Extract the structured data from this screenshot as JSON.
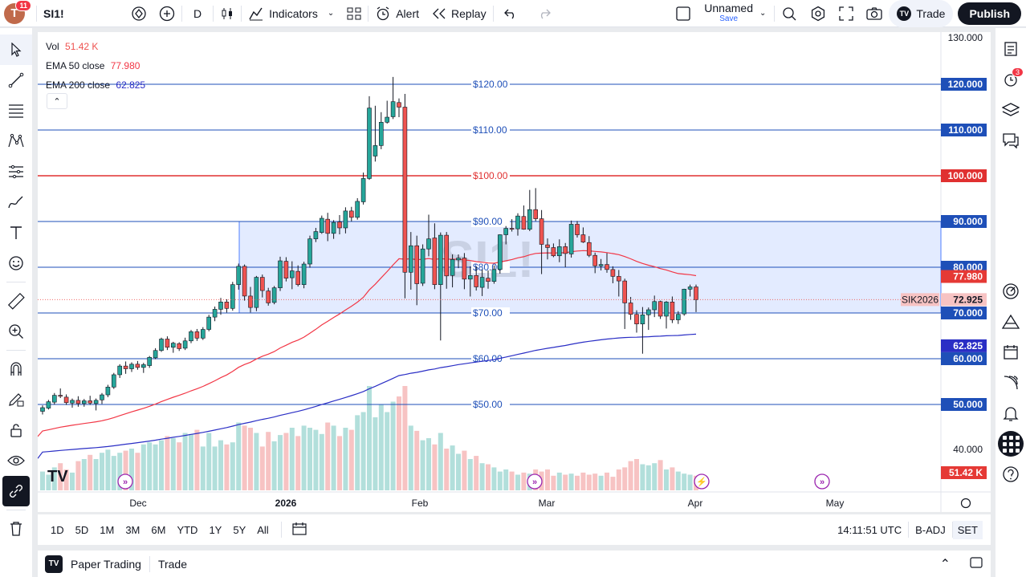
{
  "topbar": {
    "avatar_letter": "T",
    "avatar_badge": "11",
    "symbol": "SI1!",
    "interval": "D",
    "indicators": "Indicators",
    "alert": "Alert",
    "replay": "Replay",
    "layout_name": "Unnamed",
    "layout_sub": "Save",
    "trade": "Trade",
    "publish": "Publish"
  },
  "legend": {
    "vol_label": "Vol",
    "vol_value": "51.42 K",
    "ema50_label": "EMA 50 close",
    "ema50_value": "77.980",
    "ema200_label": "EMA 200 close",
    "ema200_value": "62.825"
  },
  "watermark": "SI1!",
  "colors": {
    "up": "#26a69a",
    "down": "#ef5350",
    "ema50": "#f23645",
    "ema200": "#2a2ec5",
    "hline_blue": "#1e4fb8",
    "hline_red": "#e03030",
    "zone": "#e3ebff"
  },
  "right_badges": {
    "dn": "SIK2026",
    "sik": "72.925",
    "ema50": "77.980",
    "ema200": "62.825",
    "vol": "51.42 K"
  },
  "bottom": {
    "ranges": [
      "1D",
      "5D",
      "1M",
      "3M",
      "6M",
      "YTD",
      "1Y",
      "5Y",
      "All"
    ],
    "time": "14:11:51 UTC",
    "adj": "B-ADJ",
    "session": "SET"
  },
  "paper": {
    "label": "Paper Trading",
    "trade": "Trade"
  },
  "notification_count": "3",
  "chart_data": {
    "type": "candlestick",
    "symbol": "SI1!",
    "price_axis_ticks": [
      "130.000",
      "40.000"
    ],
    "time_axis_labels": [
      "Dec",
      "2026",
      "Feb",
      "Mar",
      "Apr",
      "May"
    ],
    "horizontal_levels": [
      {
        "price": 120,
        "label": "$120.00",
        "axis": "120.000",
        "color": "blue"
      },
      {
        "price": 110,
        "label": "$110.00",
        "axis": "110.000",
        "color": "blue"
      },
      {
        "price": 100,
        "label": "$100.00",
        "axis": "100.000",
        "color": "red"
      },
      {
        "price": 90,
        "label": "$90.00",
        "axis": "90.000",
        "color": "blue"
      },
      {
        "price": 80,
        "label": "$80.00",
        "axis": "80.000",
        "color": "blue"
      },
      {
        "price": 70,
        "label": "$70.00",
        "axis": "70.000",
        "color": "blue"
      },
      {
        "price": 60,
        "label": "$60.00",
        "axis": "60.000",
        "color": "blue"
      },
      {
        "price": 50,
        "label": "$50.00",
        "axis": "50.000",
        "color": "blue"
      }
    ],
    "zone": {
      "from_price": 70,
      "to_price": 90
    },
    "last_price": 72.925,
    "candles": [
      [
        48.5,
        49.8,
        47.8,
        49.3
      ],
      [
        49.2,
        51.0,
        48.9,
        50.6
      ],
      [
        50.5,
        52.5,
        50.0,
        52.0
      ],
      [
        52.0,
        53.5,
        51.4,
        51.8
      ],
      [
        51.6,
        52.2,
        49.9,
        50.4
      ],
      [
        50.3,
        51.3,
        49.3,
        50.9
      ],
      [
        50.9,
        51.8,
        49.5,
        50.2
      ],
      [
        50.2,
        51.2,
        49.5,
        50.8
      ],
      [
        50.8,
        51.9,
        49.9,
        50.3
      ],
      [
        50.2,
        51.3,
        48.7,
        50.9
      ],
      [
        51.0,
        52.5,
        50.1,
        52.1
      ],
      [
        52.1,
        54.3,
        51.6,
        53.8
      ],
      [
        53.8,
        56.9,
        53.4,
        56.5
      ],
      [
        56.5,
        58.8,
        55.8,
        58.4
      ],
      [
        58.4,
        59.4,
        56.7,
        57.8
      ],
      [
        57.8,
        59.2,
        57.1,
        58.8
      ],
      [
        58.8,
        59.5,
        57.6,
        58.1
      ],
      [
        58.1,
        59.1,
        56.9,
        58.7
      ],
      [
        58.5,
        60.6,
        58.0,
        60.3
      ],
      [
        60.2,
        62.3,
        59.9,
        61.8
      ],
      [
        61.8,
        64.6,
        61.5,
        64.3
      ],
      [
        64.3,
        64.9,
        61.9,
        62.5
      ],
      [
        62.5,
        63.7,
        61.3,
        63.4
      ],
      [
        63.3,
        63.6,
        61.7,
        62.2
      ],
      [
        62.3,
        64.6,
        61.9,
        63.9
      ],
      [
        63.9,
        66.3,
        63.4,
        65.9
      ],
      [
        65.9,
        66.5,
        63.9,
        64.5
      ],
      [
        64.5,
        66.9,
        64.1,
        66.4
      ],
      [
        66.4,
        69.6,
        66.0,
        69.1
      ],
      [
        69.1,
        71.4,
        68.2,
        70.8
      ],
      [
        70.8,
        73.3,
        69.6,
        72.4
      ],
      [
        72.4,
        73.0,
        70.1,
        71.0
      ],
      [
        71.0,
        76.8,
        70.5,
        76.2
      ],
      [
        76.2,
        80.8,
        75.1,
        80.2
      ],
      [
        80.2,
        80.6,
        72.7,
        73.7
      ],
      [
        73.7,
        75.7,
        70.1,
        71.2
      ],
      [
        71.2,
        78.1,
        70.4,
        77.8
      ],
      [
        77.8,
        78.4,
        73.4,
        74.9
      ],
      [
        74.8,
        75.5,
        71.6,
        72.2
      ],
      [
        72.3,
        75.9,
        71.9,
        75.5
      ],
      [
        75.5,
        82.3,
        74.8,
        81.4
      ],
      [
        81.3,
        82.2,
        76.9,
        77.6
      ],
      [
        77.7,
        81.3,
        75.2,
        79.2
      ],
      [
        79.1,
        80.4,
        75.8,
        76.2
      ],
      [
        76.2,
        81.2,
        75.4,
        80.7
      ],
      [
        80.7,
        86.9,
        79.9,
        86.2
      ],
      [
        86.2,
        88.6,
        85.5,
        87.8
      ],
      [
        87.6,
        91.3,
        87.3,
        90.7
      ],
      [
        90.5,
        91.9,
        85.7,
        87.4
      ],
      [
        87.4,
        90.3,
        86.2,
        89.8
      ],
      [
        89.9,
        91.4,
        87.2,
        88.6
      ],
      [
        88.6,
        93.1,
        87.4,
        92.3
      ],
      [
        92.3,
        93.2,
        90.0,
        90.9
      ],
      [
        90.9,
        95.1,
        90.4,
        94.4
      ],
      [
        94.3,
        100.7,
        93.7,
        99.4
      ],
      [
        99.4,
        117.4,
        99.1,
        114.8
      ],
      [
        104.3,
        115.3,
        103.1,
        106.6
      ],
      [
        106.6,
        113.9,
        105.8,
        111.7
      ],
      [
        111.7,
        116.4,
        111.4,
        112.8
      ],
      [
        112.9,
        121.6,
        112.4,
        116.2
      ],
      [
        116.0,
        116.9,
        112.8,
        115.0
      ],
      [
        115.0,
        117.9,
        73.2,
        78.9
      ],
      [
        78.9,
        87.7,
        75.1,
        84.7
      ],
      [
        84.7,
        86.9,
        71.7,
        76.4
      ],
      [
        76.5,
        85.0,
        75.9,
        84.0
      ],
      [
        84.0,
        91.5,
        82.4,
        86.2
      ],
      [
        86.4,
        89.6,
        75.2,
        76.2
      ],
      [
        76.2,
        87.6,
        64.0,
        87.0
      ],
      [
        87.0,
        87.7,
        75.3,
        78.1
      ],
      [
        78.2,
        82.8,
        75.6,
        81.7
      ],
      [
        81.6,
        82.8,
        79.8,
        82.0
      ],
      [
        82.0,
        83.1,
        75.2,
        77.4
      ],
      [
        77.4,
        80.2,
        73.6,
        78.2
      ],
      [
        78.2,
        80.2,
        74.9,
        75.7
      ],
      [
        75.6,
        79.5,
        73.7,
        77.8
      ],
      [
        77.6,
        79.3,
        75.3,
        76.9
      ],
      [
        76.9,
        80.4,
        76.4,
        79.5
      ],
      [
        79.5,
        87.2,
        78.6,
        87.1
      ],
      [
        87.1,
        89.0,
        85.0,
        88.5
      ],
      [
        88.5,
        90.5,
        87.8,
        88.3
      ],
      [
        88.4,
        91.8,
        86.9,
        91.2
      ],
      [
        91.1,
        93.5,
        88.2,
        88.3
      ],
      [
        88.3,
        96.9,
        87.9,
        92.6
      ],
      [
        92.6,
        97.3,
        90.1,
        90.6
      ],
      [
        90.6,
        92.5,
        78.5,
        85.0
      ],
      [
        84.9,
        86.3,
        81.7,
        84.3
      ],
      [
        84.3,
        85.2,
        82.2,
        82.5
      ],
      [
        82.5,
        86.1,
        81.1,
        84.5
      ],
      [
        84.5,
        85.3,
        80.0,
        83.0
      ],
      [
        82.9,
        90.2,
        82.1,
        89.4
      ],
      [
        89.4,
        90.1,
        86.5,
        87.1
      ],
      [
        87.1,
        88.7,
        85.3,
        85.5
      ],
      [
        85.4,
        86.8,
        82.2,
        82.6
      ],
      [
        82.6,
        83.2,
        78.7,
        80.3
      ],
      [
        80.3,
        81.8,
        79.3,
        80.6
      ],
      [
        80.6,
        83.1,
        78.8,
        79.5
      ],
      [
        79.5,
        80.2,
        76.5,
        78.0
      ],
      [
        78.0,
        79.4,
        73.6,
        77.0
      ],
      [
        77.0,
        77.5,
        66.5,
        72.2
      ],
      [
        72.2,
        73.5,
        68.5,
        69.7
      ],
      [
        69.7,
        70.6,
        65.7,
        67.6
      ],
      [
        67.6,
        71.3,
        61.1,
        69.6
      ],
      [
        69.6,
        71.2,
        66.3,
        70.7
      ],
      [
        70.7,
        73.8,
        69.1,
        72.5
      ],
      [
        72.5,
        72.7,
        68.7,
        69.3
      ],
      [
        69.3,
        72.6,
        66.6,
        72.4
      ],
      [
        72.4,
        73.6,
        67.8,
        68.5
      ],
      [
        68.5,
        70.4,
        67.6,
        69.7
      ],
      [
        69.8,
        75.3,
        69.4,
        75.2
      ],
      [
        75.2,
        76.2,
        73.6,
        75.7
      ],
      [
        75.7,
        76.2,
        70.2,
        72.9
      ]
    ],
    "volume_relative": [
      0.18,
      0.15,
      0.22,
      0.26,
      0.2,
      0.17,
      0.28,
      0.3,
      0.34,
      0.3,
      0.36,
      0.39,
      0.33,
      0.36,
      0.38,
      0.4,
      0.36,
      0.44,
      0.46,
      0.44,
      0.48,
      0.52,
      0.5,
      0.46,
      0.55,
      0.54,
      0.58,
      0.42,
      0.55,
      0.42,
      0.48,
      0.44,
      0.46,
      0.65,
      0.62,
      0.6,
      0.55,
      0.42,
      0.56,
      0.47,
      0.53,
      0.55,
      0.6,
      0.52,
      0.62,
      0.6,
      0.58,
      0.54,
      0.65,
      0.62,
      0.52,
      0.6,
      0.58,
      0.72,
      0.75,
      1.0,
      0.7,
      0.82,
      0.75,
      0.85,
      0.9,
      1.0,
      0.62,
      0.57,
      0.48,
      0.5,
      0.44,
      0.55,
      0.4,
      0.43,
      0.35,
      0.38,
      0.3,
      0.33,
      0.26,
      0.25,
      0.22,
      0.18,
      0.2,
      0.18,
      0.15,
      0.17,
      0.16,
      0.2,
      0.18,
      0.2,
      0.14,
      0.17,
      0.15,
      0.16,
      0.14,
      0.17,
      0.15,
      0.16,
      0.14,
      0.17,
      0.13,
      0.2,
      0.22,
      0.28,
      0.3,
      0.25,
      0.24,
      0.26,
      0.29,
      0.2,
      0.22,
      0.18,
      0.16,
      0.15,
      0.14
    ]
  }
}
